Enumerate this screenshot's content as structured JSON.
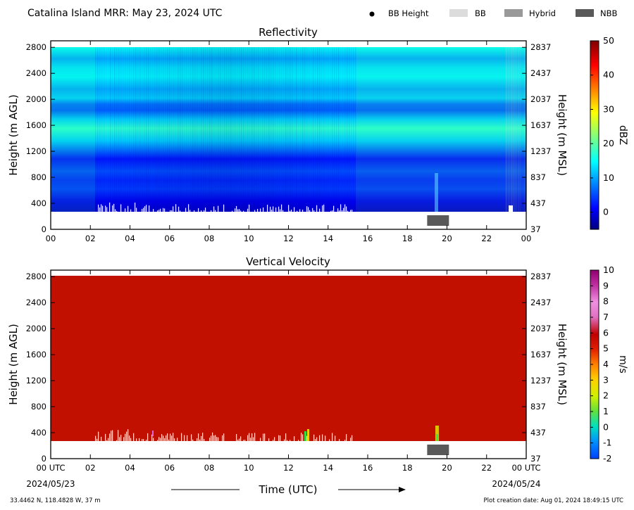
{
  "header": {
    "title": "Catalina Island MRR:  May 23, 2024 UTC",
    "legend": [
      {
        "label": "BB Height",
        "swatch": "dot",
        "color": "#000000"
      },
      {
        "label": "BB",
        "swatch": "box",
        "color": "#dcdcdc"
      },
      {
        "label": "Hybrid",
        "swatch": "box",
        "color": "#999999"
      },
      {
        "label": "NBB",
        "swatch": "box",
        "color": "#595959"
      }
    ]
  },
  "footer": {
    "xlabel": "Time (UTC)",
    "start_date": "2024/05/23",
    "end_date": "2024/05/24",
    "location": "33.4462 N, 118.4828 W, 37 m",
    "creation": "Plot creation date: Aug 01, 2024 18:49:15 UTC"
  },
  "chart_data": [
    {
      "type": "heatmap",
      "title": "Reflectivity",
      "xlabel": "",
      "ylabel": "Height (m AGL)",
      "ylabel_right": "Height (m MSL)",
      "x_ticks": [
        "00",
        "02",
        "04",
        "06",
        "08",
        "10",
        "12",
        "14",
        "16",
        "18",
        "20",
        "22",
        "00"
      ],
      "x_range_hours": [
        0,
        24
      ],
      "y_ticks": [
        0,
        400,
        800,
        1200,
        1600,
        2000,
        2400,
        2800
      ],
      "y_ticks_right": [
        37,
        437,
        837,
        1237,
        1637,
        2037,
        2437,
        2837
      ],
      "ylim": [
        0,
        2900
      ],
      "data_bottom_m": 280,
      "data_top_m": 2990,
      "colorbar": {
        "label": "dBZ",
        "min": -5,
        "max": 50,
        "ticks": [
          0,
          10,
          20,
          30,
          40,
          50
        ]
      },
      "profile_dbz": [
        {
          "h": 280,
          "v": -1
        },
        {
          "h": 450,
          "v": 1
        },
        {
          "h": 650,
          "v": 5
        },
        {
          "h": 800,
          "v": 4
        },
        {
          "h": 950,
          "v": 6
        },
        {
          "h": 1150,
          "v": 3
        },
        {
          "h": 1300,
          "v": 8
        },
        {
          "h": 1450,
          "v": 13
        },
        {
          "h": 1650,
          "v": 18
        },
        {
          "h": 1800,
          "v": 13
        },
        {
          "h": 1950,
          "v": 7
        },
        {
          "h": 2050,
          "v": 8
        },
        {
          "h": 2150,
          "v": 13
        },
        {
          "h": 2300,
          "v": 11
        },
        {
          "h": 2500,
          "v": 15
        },
        {
          "h": 2650,
          "v": 14
        },
        {
          "h": 2800,
          "v": 11
        },
        {
          "h": 2990,
          "v": 16
        }
      ],
      "bright_band": [
        {
          "type": "NBB",
          "start_h": 19.0,
          "end_h": 20.1,
          "color": "#595959"
        }
      ]
    },
    {
      "type": "heatmap",
      "title": "Vertical Velocity",
      "xlabel": "Time (UTC)",
      "ylabel": "Height (m AGL)",
      "ylabel_right": "Height (m MSL)",
      "x_ticks": [
        "00 UTC",
        "02",
        "04",
        "06",
        "08",
        "10",
        "12",
        "14",
        "16",
        "18",
        "20",
        "22",
        "00 UTC"
      ],
      "x_range_hours": [
        0,
        24
      ],
      "y_ticks": [
        0,
        400,
        800,
        1200,
        1600,
        2000,
        2400,
        2800
      ],
      "y_ticks_right": [
        37,
        437,
        837,
        1237,
        1637,
        2037,
        2437,
        2837
      ],
      "ylim": [
        0,
        2900
      ],
      "data_bottom_m": 280,
      "data_top_m": 2920,
      "dominant_value_ms": 6,
      "colorbar": {
        "label": "m/s",
        "min": -2,
        "max": 10,
        "ticks": [
          -2,
          -1,
          0,
          1,
          2,
          3,
          4,
          5,
          6,
          7,
          8,
          9,
          10
        ]
      },
      "bright_band": [
        {
          "type": "NBB",
          "start_h": 19.0,
          "end_h": 20.1,
          "color": "#595959"
        }
      ]
    }
  ]
}
